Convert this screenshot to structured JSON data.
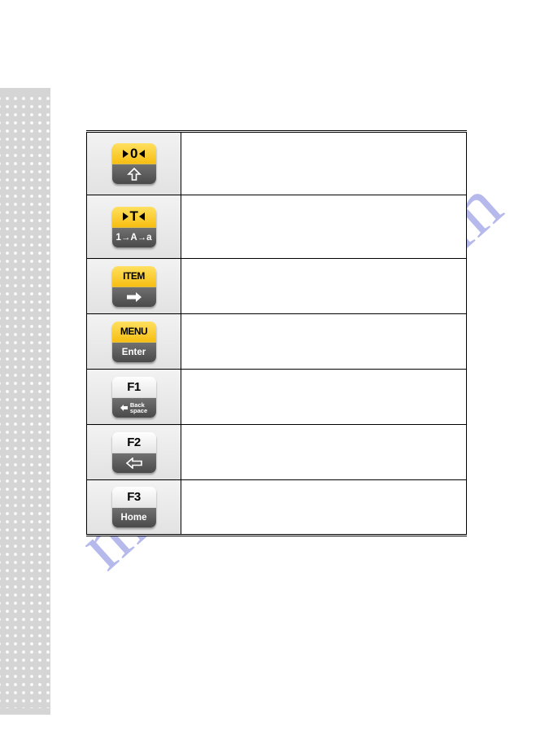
{
  "watermark": {
    "text": "manualshive.com"
  },
  "keys": [
    {
      "name": "zero-key",
      "top_style": "yellow",
      "top_text": "0",
      "top_has_triangles": true,
      "bottom_style": "gray",
      "bottom_mode": "arrow-up",
      "row": "tall"
    },
    {
      "name": "t-key",
      "top_style": "yellow",
      "top_text": "T",
      "top_has_triangles": true,
      "bottom_style": "gray",
      "bottom_mode": "text",
      "bottom_text": "1→A→a",
      "row": "tall"
    },
    {
      "name": "item-key",
      "top_style": "yellow",
      "top_text": "ITEM",
      "top_has_triangles": false,
      "bottom_style": "gray",
      "bottom_mode": "arrow-right",
      "row": "short"
    },
    {
      "name": "menu-key",
      "top_style": "yellow",
      "top_text": "MENU",
      "top_has_triangles": false,
      "bottom_style": "gray",
      "bottom_mode": "text",
      "bottom_text": "Enter",
      "row": "short"
    },
    {
      "name": "f1-key",
      "top_style": "white",
      "top_text": "F1",
      "top_has_triangles": false,
      "bottom_style": "gray",
      "bottom_mode": "backspace",
      "bottom_text": "Back space",
      "row": "short"
    },
    {
      "name": "f2-key",
      "top_style": "white",
      "top_text": "F2",
      "top_has_triangles": false,
      "bottom_style": "gray",
      "bottom_mode": "arrow-left",
      "row": "short"
    },
    {
      "name": "f3-key",
      "top_style": "white",
      "top_text": "F3",
      "top_has_triangles": false,
      "bottom_style": "gray",
      "bottom_mode": "text",
      "bottom_text": "Home",
      "row": "short"
    }
  ],
  "colors": {
    "sidebar_bg": "#d5d5d5",
    "sidebar_dot": "#ffffff",
    "yellow_top": "#f7be12",
    "gray_bot": "#4a4a4a",
    "white_top": "#ffffff",
    "watermark": "rgba(90,100,210,0.45)"
  }
}
